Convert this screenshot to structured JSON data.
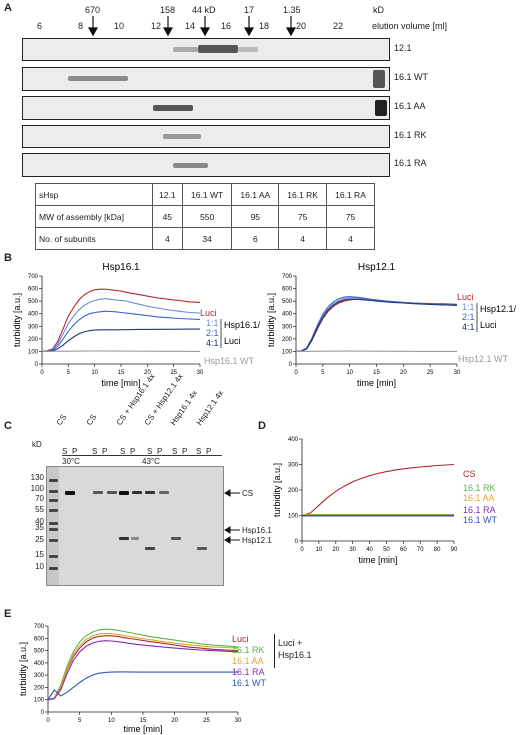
{
  "panelA": {
    "label": "A",
    "mw_markers": [
      "670",
      "158",
      "44 kD",
      "17",
      "1.35"
    ],
    "kd_unit": "kD",
    "elution_numbers": [
      "6",
      "8",
      "10",
      "12",
      "14",
      "16",
      "18",
      "20",
      "22"
    ],
    "elution_label": "elution volume [ml]",
    "blots": [
      "12.1",
      "16.1 WT",
      "16.1 AA",
      "16.1 RK",
      "16.1 RA"
    ],
    "table": {
      "headers": [
        "sHsp",
        "12.1",
        "16.1 WT",
        "16.1 AA",
        "16.1 RK",
        "16.1 RA"
      ],
      "rows": [
        [
          "MW of assembly [kDa]",
          "45",
          "550",
          "95",
          "75",
          "75"
        ],
        [
          "No. of subunits",
          "4",
          "34",
          "6",
          "4",
          "4"
        ]
      ]
    }
  },
  "panelB": {
    "label": "B",
    "ratio_labels": [
      "1:1",
      "2:1",
      "4:1"
    ],
    "ratio_colors": [
      "#6a8fd8",
      "#3a63c8",
      "#1e3a7a"
    ]
  },
  "panelC": {
    "label": "C",
    "lane_headers": [
      "CS",
      "CS",
      "CS + Hsp16.1 4x",
      "CS + Hsp12.1 4x",
      "Hsp16.1 4x",
      "Hsp12.1 4x"
    ],
    "sp": [
      "S",
      "P"
    ],
    "temps": [
      "30°C",
      "43°C"
    ],
    "kd_label": "kD",
    "ladder": [
      "130",
      "100",
      "70",
      "55",
      "40",
      "35",
      "25",
      "15",
      "10"
    ],
    "band_labels": [
      "CS",
      "Hsp16.1",
      "Hsp12.1"
    ]
  },
  "panelD": {
    "label": "D"
  },
  "panelE": {
    "label": "E",
    "bracket_label": [
      "Luci +",
      "Hsp16.1"
    ]
  },
  "chart_data": [
    {
      "type": "line",
      "title": "Hsp16.1",
      "xlabel": "time [min]",
      "ylabel": "turbidity [a.u.]",
      "xlim": [
        0,
        30
      ],
      "ylim": [
        0,
        700
      ],
      "xticks": [
        0,
        5,
        10,
        15,
        20,
        25,
        30
      ],
      "yticks": [
        0,
        100,
        200,
        300,
        400,
        500,
        600,
        700
      ],
      "legend_side_label": [
        "Hsp16.1/",
        "Luci"
      ],
      "series": [
        {
          "name": "Luci",
          "color": "#b3262b",
          "x": [
            0,
            1,
            2,
            3,
            4,
            5,
            6,
            7,
            8,
            9,
            10,
            11,
            12,
            13,
            14,
            15,
            16,
            18,
            20,
            22,
            24,
            26,
            28,
            30
          ],
          "y": [
            100,
            105,
            120,
            180,
            280,
            380,
            450,
            510,
            550,
            575,
            590,
            595,
            595,
            590,
            585,
            580,
            570,
            555,
            540,
            525,
            515,
            505,
            495,
            490
          ]
        },
        {
          "name": "1:1",
          "color": "#6a8fd8",
          "x": [
            0,
            1,
            2,
            3,
            4,
            5,
            6,
            7,
            8,
            9,
            10,
            11,
            12,
            13,
            14,
            15,
            16,
            18,
            20,
            22,
            24,
            26,
            28,
            30
          ],
          "y": [
            100,
            103,
            115,
            160,
            240,
            320,
            380,
            430,
            465,
            490,
            505,
            515,
            520,
            515,
            510,
            505,
            500,
            480,
            460,
            445,
            430,
            420,
            410,
            405
          ]
        },
        {
          "name": "2:1",
          "color": "#3a63c8",
          "x": [
            0,
            1,
            2,
            3,
            4,
            5,
            6,
            7,
            8,
            9,
            10,
            11,
            12,
            13,
            14,
            15,
            16,
            18,
            20,
            22,
            24,
            26,
            28,
            30
          ],
          "y": [
            100,
            102,
            110,
            140,
            200,
            260,
            310,
            350,
            380,
            400,
            410,
            415,
            420,
            418,
            415,
            410,
            405,
            395,
            385,
            375,
            368,
            362,
            358,
            355
          ]
        },
        {
          "name": "4:1",
          "color": "#1e3a7a",
          "x": [
            0,
            1,
            2,
            3,
            4,
            5,
            6,
            7,
            8,
            9,
            10,
            11,
            12,
            13,
            14,
            15,
            16,
            18,
            20,
            22,
            24,
            26,
            28,
            30
          ],
          "y": [
            100,
            101,
            105,
            120,
            150,
            185,
            215,
            240,
            255,
            265,
            270,
            272,
            272,
            272,
            272,
            273,
            273,
            275,
            275,
            276,
            276,
            277,
            278,
            278
          ]
        },
        {
          "name": "Hsp16.1 WT",
          "color": "#9a9a9a",
          "x": [
            0,
            5,
            10,
            15,
            20,
            25,
            30
          ],
          "y": [
            100,
            102,
            104,
            103,
            102,
            101,
            100
          ]
        }
      ]
    },
    {
      "type": "line",
      "title": "Hsp12.1",
      "xlabel": "time [min]",
      "ylabel": "turbidity [a.u.]",
      "xlim": [
        0,
        30
      ],
      "ylim": [
        0,
        700
      ],
      "xticks": [
        0,
        5,
        10,
        15,
        20,
        25,
        30
      ],
      "yticks": [
        0,
        100,
        200,
        300,
        400,
        500,
        600,
        700
      ],
      "legend_side_label": [
        "Hsp12.1/",
        "Luci"
      ],
      "series": [
        {
          "name": "Luci",
          "color": "#b3262b",
          "x": [
            0,
            1,
            2,
            3,
            4,
            5,
            6,
            7,
            8,
            9,
            10,
            11,
            12,
            13,
            14,
            15,
            16,
            18,
            20,
            22,
            24,
            26,
            28,
            30
          ],
          "y": [
            100,
            103,
            120,
            190,
            280,
            360,
            420,
            460,
            485,
            500,
            510,
            515,
            515,
            512,
            510,
            505,
            500,
            495,
            490,
            485,
            482,
            480,
            478,
            475
          ]
        },
        {
          "name": "1:1",
          "color": "#6a8fd8",
          "x": [
            0,
            1,
            2,
            3,
            4,
            5,
            6,
            7,
            8,
            9,
            10,
            11,
            12,
            13,
            14,
            15,
            16,
            18,
            20,
            22,
            24,
            26,
            28,
            30
          ],
          "y": [
            100,
            104,
            125,
            200,
            300,
            380,
            440,
            480,
            505,
            520,
            525,
            525,
            522,
            518,
            512,
            508,
            502,
            495,
            488,
            482,
            478,
            475,
            472,
            470
          ]
        },
        {
          "name": "2:1",
          "color": "#3a63c8",
          "x": [
            0,
            1,
            2,
            3,
            4,
            5,
            6,
            7,
            8,
            9,
            10,
            11,
            12,
            13,
            14,
            15,
            16,
            18,
            20,
            22,
            24,
            26,
            28,
            30
          ],
          "y": [
            100,
            104,
            128,
            210,
            310,
            395,
            455,
            495,
            520,
            532,
            535,
            533,
            528,
            522,
            515,
            510,
            505,
            496,
            490,
            484,
            478,
            474,
            470,
            466
          ]
        },
        {
          "name": "4:1",
          "color": "#1e3a7a",
          "x": [
            0,
            1,
            2,
            3,
            4,
            5,
            6,
            7,
            8,
            9,
            10,
            11,
            12,
            13,
            14,
            15,
            16,
            18,
            20,
            22,
            24,
            26,
            28,
            30
          ],
          "y": [
            100,
            103,
            122,
            195,
            290,
            370,
            430,
            470,
            495,
            510,
            515,
            515,
            512,
            508,
            505,
            500,
            496,
            490,
            485,
            480,
            476,
            472,
            470,
            468
          ]
        },
        {
          "name": "Hsp12.1 WT",
          "color": "#9a9a9a",
          "x": [
            0,
            5,
            10,
            15,
            20,
            25,
            30
          ],
          "y": [
            100,
            102,
            103,
            102,
            101,
            100,
            100
          ]
        }
      ]
    },
    {
      "type": "line",
      "xlabel": "time [min]",
      "ylabel": "turbidity [a.u.]",
      "xlim": [
        0,
        90
      ],
      "ylim": [
        0,
        400
      ],
      "xticks": [
        0,
        10,
        20,
        30,
        40,
        50,
        60,
        70,
        80,
        90
      ],
      "yticks": [
        0,
        100,
        200,
        300,
        400
      ],
      "series": [
        {
          "name": "CS",
          "color": "#b3262b",
          "x": [
            0,
            5,
            10,
            15,
            20,
            25,
            30,
            35,
            40,
            45,
            50,
            55,
            60,
            65,
            70,
            75,
            80,
            85,
            90
          ],
          "y": [
            100,
            110,
            140,
            170,
            195,
            215,
            232,
            245,
            256,
            265,
            272,
            278,
            283,
            287,
            290,
            293,
            296,
            298,
            300
          ]
        },
        {
          "name": "16.1 RK",
          "color": "#59b34a",
          "x": [
            0,
            15,
            30,
            45,
            60,
            75,
            90
          ],
          "y": [
            104,
            104,
            104,
            104,
            104,
            104,
            104
          ]
        },
        {
          "name": "16.1 AA",
          "color": "#e0a62a",
          "x": [
            0,
            15,
            30,
            45,
            60,
            75,
            90
          ],
          "y": [
            102,
            102,
            102,
            102,
            102,
            102,
            102
          ]
        },
        {
          "name": "16.1 RA",
          "color": "#7b2fb0",
          "x": [
            0,
            15,
            30,
            45,
            60,
            75,
            90
          ],
          "y": [
            100,
            100,
            100,
            100,
            100,
            100,
            100
          ]
        },
        {
          "name": "16.1 WT",
          "color": "#2d55c0",
          "x": [
            0,
            15,
            30,
            45,
            60,
            75,
            90
          ],
          "y": [
            98,
            98,
            98,
            98,
            98,
            98,
            98
          ]
        }
      ]
    },
    {
      "type": "line",
      "xlabel": "time [min]",
      "ylabel": "turbidity [a.u.]",
      "xlim": [
        0,
        30
      ],
      "ylim": [
        0,
        700
      ],
      "xticks": [
        0,
        5,
        10,
        15,
        20,
        25,
        30
      ],
      "yticks": [
        0,
        100,
        200,
        300,
        400,
        500,
        600,
        700
      ],
      "series": [
        {
          "name": "Luci",
          "color": "#b3262b",
          "x": [
            0,
            1,
            2,
            3,
            4,
            5,
            6,
            7,
            8,
            9,
            10,
            11,
            12,
            14,
            16,
            18,
            20,
            22,
            24,
            26,
            28,
            30
          ],
          "y": [
            100,
            110,
            200,
            340,
            450,
            520,
            570,
            600,
            615,
            620,
            620,
            615,
            605,
            590,
            575,
            560,
            545,
            530,
            520,
            510,
            505,
            500
          ]
        },
        {
          "name": "16.1 RK",
          "color": "#59b34a",
          "x": [
            0,
            1,
            2,
            3,
            4,
            5,
            6,
            7,
            8,
            9,
            10,
            11,
            12,
            14,
            16,
            18,
            20,
            22,
            24,
            26,
            28,
            30
          ],
          "y": [
            100,
            115,
            220,
            370,
            490,
            570,
            620,
            650,
            668,
            675,
            672,
            665,
            655,
            635,
            615,
            600,
            585,
            570,
            555,
            545,
            538,
            530
          ]
        },
        {
          "name": "16.1 AA",
          "color": "#e0a62a",
          "x": [
            0,
            1,
            2,
            3,
            4,
            5,
            6,
            7,
            8,
            9,
            10,
            11,
            12,
            14,
            16,
            18,
            20,
            22,
            24,
            26,
            28,
            30
          ],
          "y": [
            100,
            112,
            205,
            350,
            465,
            540,
            590,
            620,
            635,
            640,
            638,
            632,
            622,
            605,
            590,
            575,
            560,
            548,
            538,
            530,
            525,
            520
          ]
        },
        {
          "name": "16.1 RA",
          "color": "#7b2fb0",
          "x": [
            0,
            1,
            2,
            3,
            4,
            5,
            6,
            7,
            8,
            9,
            10,
            11,
            12,
            14,
            16,
            18,
            20,
            22,
            24,
            26,
            28,
            30
          ],
          "y": [
            100,
            108,
            180,
            310,
            420,
            490,
            535,
            560,
            575,
            580,
            578,
            572,
            565,
            550,
            540,
            530,
            520,
            512,
            505,
            500,
            495,
            490
          ]
        },
        {
          "name": "16.1 WT",
          "color": "#2d55c0",
          "x": [
            0,
            1,
            2,
            3,
            4,
            5,
            6,
            7,
            8,
            9,
            10,
            11,
            12,
            14,
            16,
            18,
            20,
            22,
            24,
            26,
            28,
            30
          ],
          "y": [
            100,
            180,
            130,
            160,
            200,
            240,
            275,
            300,
            315,
            322,
            325,
            326,
            326,
            325,
            325,
            325,
            325,
            325,
            325,
            325,
            325,
            325
          ]
        }
      ]
    }
  ]
}
